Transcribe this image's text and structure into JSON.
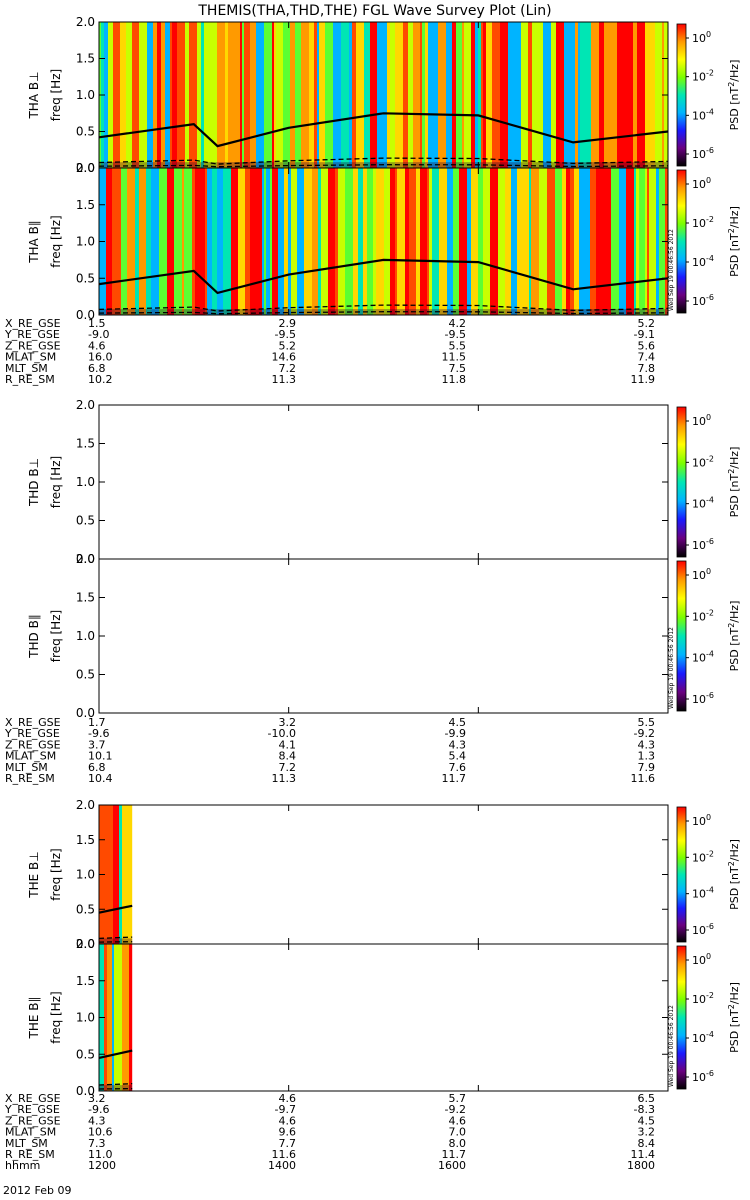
{
  "title": "THEMIS(THA,THD,THE) FGL Wave Survey Plot (Lin)",
  "date_label": "2012 Feb 09",
  "stamp": "Wed Sep 19 00:46:56 2012",
  "freq_unit": "freq [Hz]",
  "colorbar": {
    "label": "PSD [nT^2/Hz]",
    "ticks": [
      "10^0",
      "10^-2",
      "10^-4",
      "10^-6"
    ],
    "stops": [
      "#000000",
      "#6a0080",
      "#1a1aff",
      "#00b4ff",
      "#00e6b4",
      "#7bff00",
      "#ffff00",
      "#ff9a00",
      "#ff0000"
    ]
  },
  "x_axis": {
    "tick_hhmm": [
      "1200",
      "1400",
      "1600",
      "1800"
    ]
  },
  "chart_data": [
    {
      "type": "heatmap",
      "probe": "THA",
      "panels": [
        {
          "name": "THA B⊥",
          "ylim": [
            0,
            2.0
          ],
          "yticks": [
            "0.0",
            "0.5",
            "1.0",
            "1.5",
            "2.0"
          ]
        },
        {
          "name": "THA B∥",
          "ylim": [
            0,
            2.0
          ],
          "yticks": [
            "0.0",
            "0.5",
            "1.0",
            "1.5",
            "2.0"
          ]
        }
      ],
      "data_coverage_hhmm": [
        "1200",
        "1800"
      ],
      "ephemeris": {
        "labels": [
          "X_RE_GSE",
          "Y_RE_GSE",
          "Z_RE_GSE",
          "MLAT_SM",
          "MLT_SM",
          "R_RE_SM"
        ],
        "rows": [
          [
            "1.5",
            "2.9",
            "4.2",
            "5.2"
          ],
          [
            "-9.0",
            "-9.5",
            "-9.5",
            "-9.1"
          ],
          [
            "4.6",
            "5.2",
            "5.5",
            "5.6"
          ],
          [
            "16.0",
            "14.6",
            "11.5",
            "7.4"
          ],
          [
            "6.8",
            "7.2",
            "7.5",
            "7.8"
          ],
          [
            "10.2",
            "11.3",
            "11.8",
            "11.9"
          ]
        ]
      },
      "fce_solid_approx": [
        {
          "t": "1200",
          "f": 0.42
        },
        {
          "t": "1300",
          "f": 0.6
        },
        {
          "t": "1315",
          "f": 0.3
        },
        {
          "t": "1400",
          "f": 0.55
        },
        {
          "t": "1500",
          "f": 0.75
        },
        {
          "t": "1600",
          "f": 0.72
        },
        {
          "t": "1700",
          "f": 0.35
        },
        {
          "t": "1800",
          "f": 0.5
        }
      ]
    },
    {
      "type": "heatmap",
      "probe": "THD",
      "panels": [
        {
          "name": "THD B⊥",
          "ylim": [
            0,
            2.0
          ],
          "yticks": [
            "0.0",
            "0.5",
            "1.0",
            "1.5",
            "2.0"
          ]
        },
        {
          "name": "THD B∥",
          "ylim": [
            0,
            2.0
          ],
          "yticks": [
            "0.0",
            "0.5",
            "1.0",
            "1.5",
            "2.0"
          ]
        }
      ],
      "data_coverage_hhmm": [],
      "ephemeris": {
        "labels": [
          "X_RE_GSE",
          "Y_RE_GSE",
          "Z_RE_GSE",
          "MLAT_SM",
          "MLT_SM",
          "R_RE_SM"
        ],
        "rows": [
          [
            "1.7",
            "3.2",
            "4.5",
            "5.5"
          ],
          [
            "-9.6",
            "-10.0",
            "-9.9",
            "-9.2"
          ],
          [
            "3.7",
            "4.1",
            "4.3",
            "4.3"
          ],
          [
            "10.1",
            "8.4",
            "5.4",
            "1.3"
          ],
          [
            "6.8",
            "7.2",
            "7.6",
            "7.9"
          ],
          [
            "10.4",
            "11.3",
            "11.7",
            "11.6"
          ]
        ]
      }
    },
    {
      "type": "heatmap",
      "probe": "THE",
      "panels": [
        {
          "name": "THE B⊥",
          "ylim": [
            0,
            2.0
          ],
          "yticks": [
            "0.0",
            "0.5",
            "1.0",
            "1.5",
            "2.0"
          ]
        },
        {
          "name": "THE B∥",
          "ylim": [
            0,
            2.0
          ],
          "yticks": [
            "0.0",
            "0.5",
            "1.0",
            "1.5",
            "2.0"
          ]
        }
      ],
      "data_coverage_hhmm": [
        "1200",
        "1221"
      ],
      "ephemeris": {
        "labels": [
          "X_RE_GSE",
          "Y_RE_GSE",
          "Z_RE_GSE",
          "MLAT_SM",
          "MLT_SM",
          "R_RE_SM",
          "hhmm"
        ],
        "rows": [
          [
            "3.2",
            "4.6",
            "5.7",
            "6.5"
          ],
          [
            "-9.6",
            "-9.7",
            "-9.2",
            "-8.3"
          ],
          [
            "4.3",
            "4.6",
            "4.6",
            "4.5"
          ],
          [
            "10.6",
            "9.6",
            "7.0",
            "3.2"
          ],
          [
            "7.3",
            "7.7",
            "8.0",
            "8.4"
          ],
          [
            "11.0",
            "11.6",
            "11.7",
            "11.4"
          ],
          [
            "1200",
            "1400",
            "1600",
            "1800"
          ]
        ]
      }
    }
  ]
}
